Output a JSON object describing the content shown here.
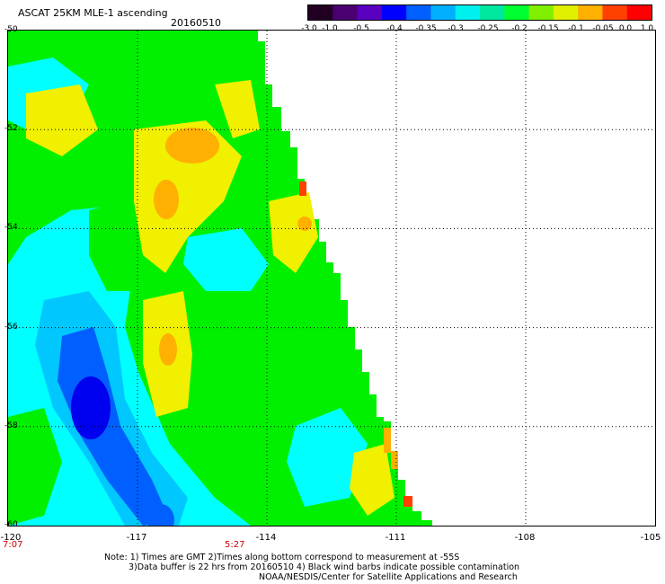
{
  "header": {
    "title": "ASCAT 25KM MLE-1 ascending",
    "date": "20160510"
  },
  "colorbar": {
    "labels": [
      "-3.0",
      "-1.0",
      "-0.5",
      "-0.4",
      "-0.35",
      "-0.3",
      "-0.25",
      "-0.2",
      "-0.15",
      "-0.1",
      "-0.05",
      "0.0",
      "1.0"
    ],
    "colors": [
      "#220022",
      "#4a0070",
      "#5a00c0",
      "#0000ff",
      "#0060ff",
      "#00b0ff",
      "#00f0f0",
      "#00e8a0",
      "#00ff30",
      "#80f000",
      "#e0f000",
      "#ffb000",
      "#ff4000",
      "#ff0000"
    ]
  },
  "map": {
    "lat_labels": [
      "-50",
      "-52",
      "-54",
      "-56",
      "-58",
      "-60"
    ],
    "lon_labels": [
      "-120",
      "-117",
      "-114",
      "-111",
      "-108",
      "-105"
    ],
    "lat_values": [
      -50,
      -52,
      -54,
      -56,
      -58,
      -60
    ],
    "lon_values": [
      -120,
      -117,
      -114,
      -111,
      -108,
      -105
    ],
    "grid": "dotted",
    "swath_colors": {
      "green": "#00f000",
      "cyan": "#00ffff",
      "lightblue": "#00c8ff",
      "blue": "#0060ff",
      "darkblue": "#0000f0",
      "yellow": "#f0f000",
      "orange": "#ffb000",
      "red": "#ff4000"
    }
  },
  "times": {
    "left": "7:07",
    "mid": "5:27"
  },
  "notes": {
    "line1": "Note: 1) Times are GMT 2)Times along bottom correspond to measurement at -55S",
    "line2": "3)Data buffer is 22 hrs from 20160510 4) Black wind barbs indicate possible contamination",
    "line3": "NOAA/NESDIS/Center for Satellite Applications and Research"
  }
}
